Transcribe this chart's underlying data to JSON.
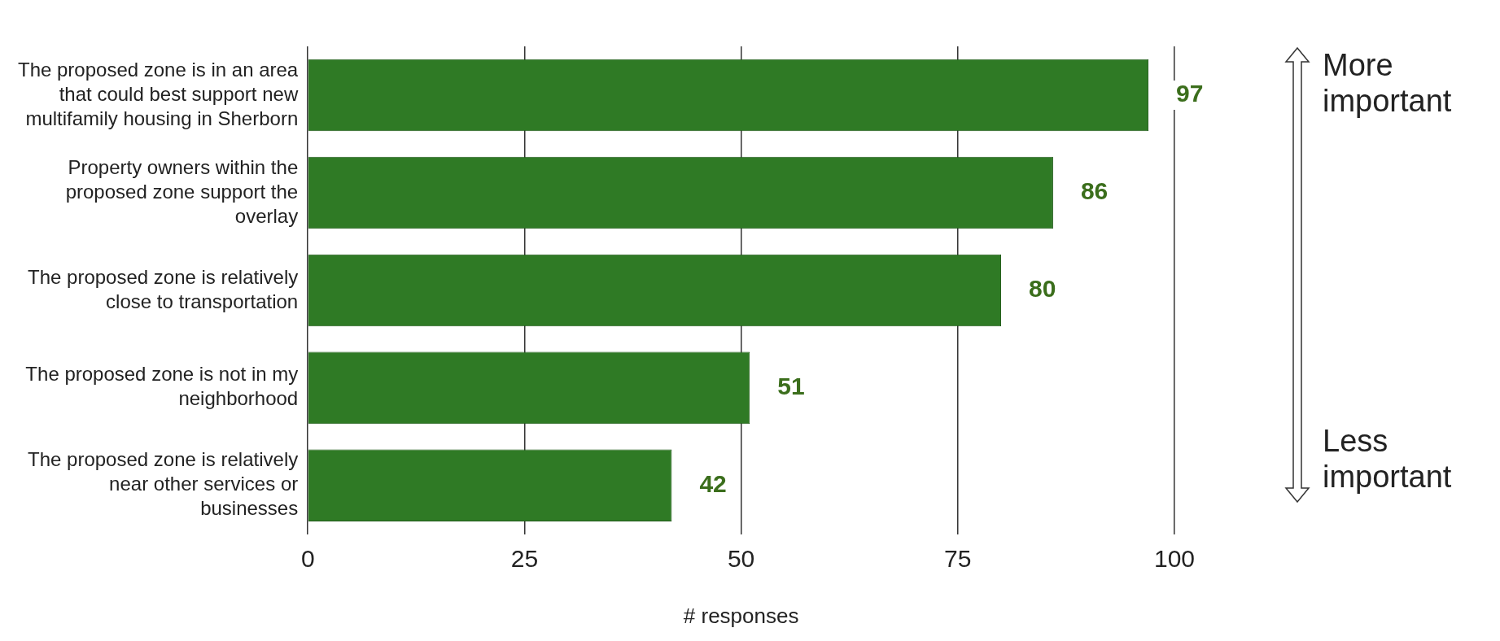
{
  "chart_data": {
    "type": "bar",
    "orientation": "horizontal",
    "xlabel": "# responses",
    "categories": [
      "The proposed zone is in an area that could best support new multifamily housing in Sherborn",
      "Property owners within the proposed zone support the overlay",
      "The proposed zone is relatively close to transportation",
      "The proposed zone is not in my neighborhood",
      "The proposed zone is relatively near other services or businesses"
    ],
    "values": [
      97,
      86,
      80,
      51,
      42
    ],
    "color": "#2f7a25",
    "data_labels": true,
    "xlim": [
      0,
      100
    ],
    "xticks": [
      0,
      25,
      50,
      75,
      100
    ],
    "grid": "x",
    "legend": false,
    "annotations": [
      "More important",
      "Less important"
    ]
  }
}
